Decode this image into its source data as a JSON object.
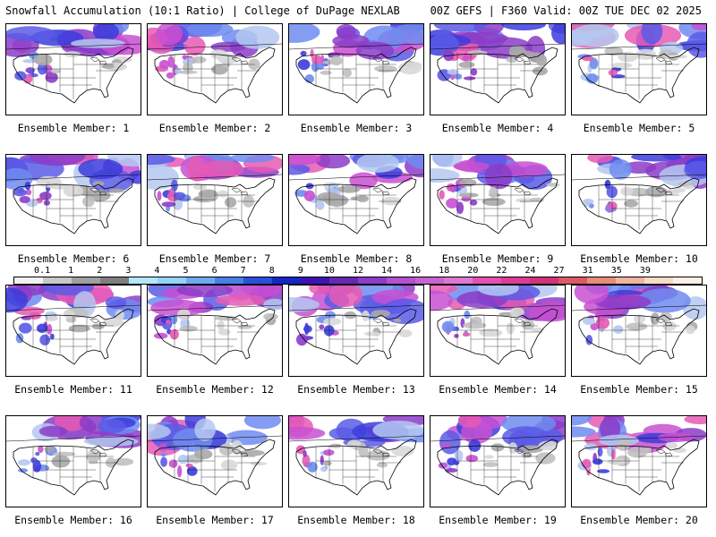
{
  "header": {
    "left": "Snowfall Accumulation (10:1 Ratio) | College of DuPage NEXLAB",
    "right": "00Z GEFS | F360 Valid: 00Z TUE DEC 02 2025"
  },
  "members": [
    "Ensemble Member: 1",
    "Ensemble Member: 2",
    "Ensemble Member: 3",
    "Ensemble Member: 4",
    "Ensemble Member: 5",
    "Ensemble Member: 6",
    "Ensemble Member: 7",
    "Ensemble Member: 8",
    "Ensemble Member: 9",
    "Ensemble Member: 10",
    "Ensemble Member: 11",
    "Ensemble Member: 12",
    "Ensemble Member: 13",
    "Ensemble Member: 14",
    "Ensemble Member: 15",
    "Ensemble Member: 16",
    "Ensemble Member: 17",
    "Ensemble Member: 18",
    "Ensemble Member: 19",
    "Ensemble Member: 20"
  ],
  "colorbar": {
    "ticks": [
      "0.1",
      "1",
      "2",
      "3",
      "4",
      "5",
      "6",
      "7",
      "8",
      "9",
      "10",
      "12",
      "14",
      "16",
      "18",
      "20",
      "22",
      "24",
      "27",
      "31",
      "35",
      "39"
    ],
    "colors": [
      "#f2f2f2",
      "#c8c8c8",
      "#a0a0a0",
      "#7f7f7f",
      "#b4e6ff",
      "#96d2fa",
      "#6eaaf0",
      "#4682e6",
      "#2850dc",
      "#1428c8",
      "#3c14b4",
      "#6428b4",
      "#8c3cc8",
      "#b450d2",
      "#c864d2",
      "#dc78d2",
      "#e650b4",
      "#dc3c96",
      "#d23278",
      "#dc5a64",
      "#e68c78",
      "#f0b4a0",
      "#f8dcc8",
      "#fff0e6"
    ]
  }
}
